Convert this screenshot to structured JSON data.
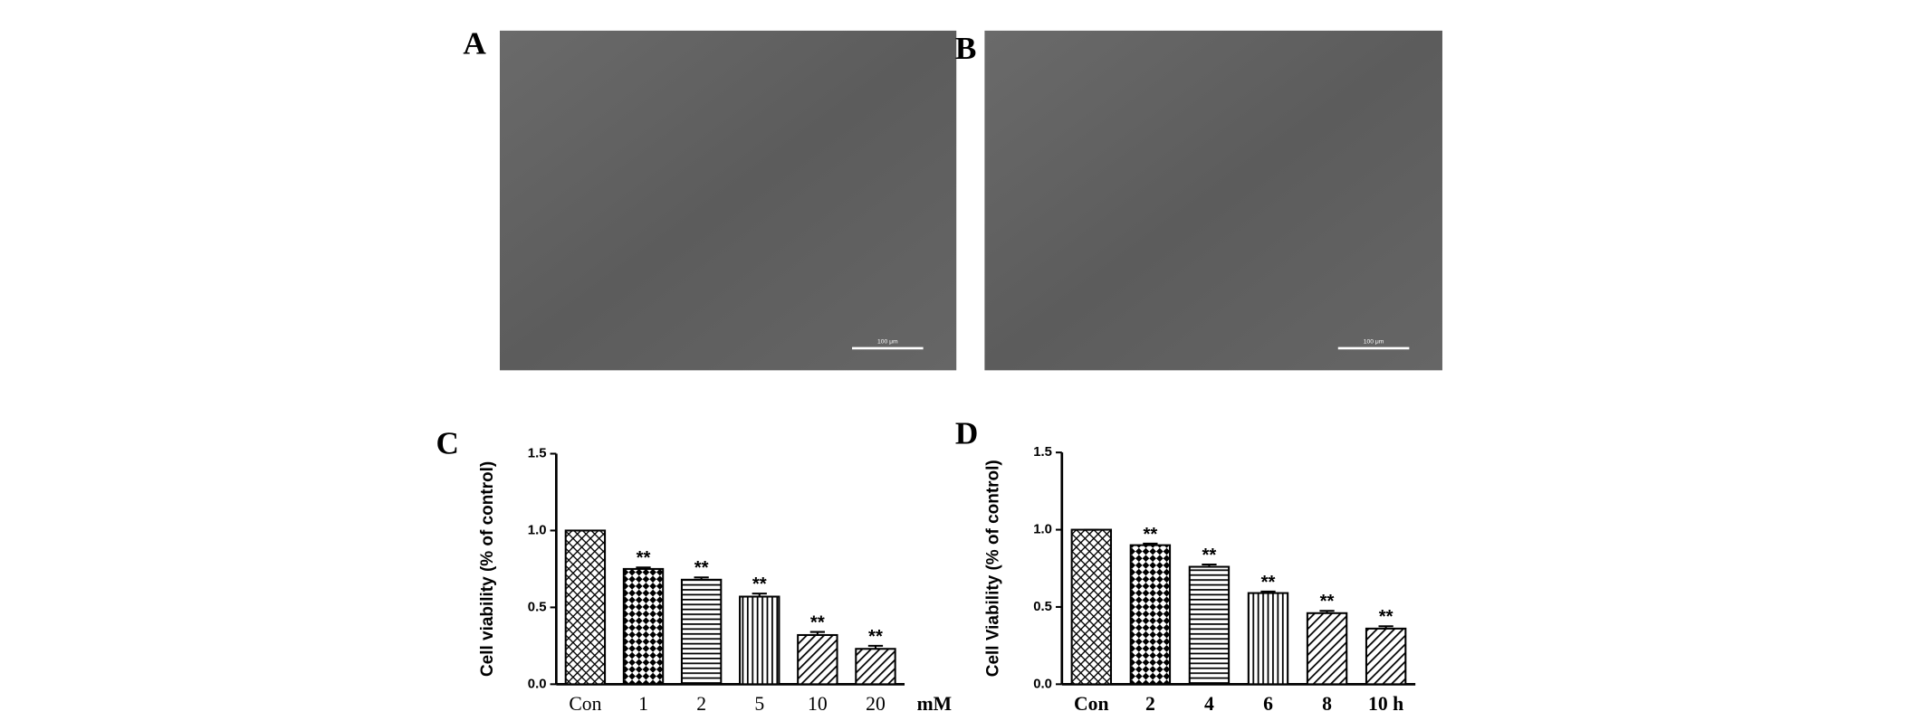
{
  "panels": [
    {
      "label": "A",
      "scale_bar": "100 μm"
    },
    {
      "label": "B",
      "scale_bar": "100 μm"
    }
  ],
  "chart_data": [
    {
      "type": "bar",
      "label": "C",
      "y_label": "Cell viability (% of control)",
      "x_unit": "mM",
      "categories": [
        "Con",
        "1",
        "2",
        "5",
        "10",
        "20"
      ],
      "values": [
        1.0,
        0.75,
        0.68,
        0.57,
        0.32,
        0.23
      ],
      "errors": [
        0.0,
        0.01,
        0.015,
        0.02,
        0.02,
        0.02
      ],
      "annotations": [
        null,
        "**",
        "**",
        "**",
        "**",
        "**"
      ],
      "patterns": [
        "crosshatch",
        "checker",
        "horizontal",
        "vertical",
        "diagonal",
        "diagonal"
      ],
      "ylim": [
        0,
        1.5
      ],
      "yticks": [
        {
          "value": 0,
          "label": "0.0"
        },
        {
          "value": 0.5,
          "label": "0.5"
        },
        {
          "value": 1,
          "label": "1.0"
        },
        {
          "value": 1.5,
          "label": "1.5"
        }
      ]
    },
    {
      "type": "bar",
      "label": "D",
      "y_label": "Cell Viability (% of control)",
      "categories": [
        "Con",
        "2",
        "4",
        "6",
        "8",
        "10 h"
      ],
      "values": [
        1.0,
        0.9,
        0.76,
        0.59,
        0.46,
        0.36
      ],
      "errors": [
        0.0,
        0.01,
        0.015,
        0.01,
        0.015,
        0.015
      ],
      "annotations": [
        null,
        "**",
        "**",
        "**",
        "**",
        "**"
      ],
      "patterns": [
        "crosshatch",
        "checker",
        "horizontal",
        "vertical",
        "diagonal",
        "diagonal"
      ],
      "ylim": [
        0,
        1.5
      ],
      "yticks": [
        {
          "value": 0,
          "label": "0.0"
        },
        {
          "value": 0.5,
          "label": "0.5"
        },
        {
          "value": 1,
          "label": "1.0"
        },
        {
          "value": 1.5,
          "label": "1.5"
        }
      ]
    }
  ]
}
